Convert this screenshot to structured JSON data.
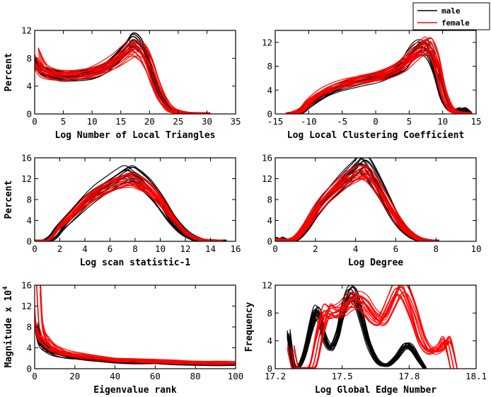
{
  "legend": {
    "entries": [
      {
        "label": "male",
        "color": "#000000"
      },
      {
        "label": "female",
        "color": "#ff0000"
      }
    ]
  },
  "chart_data": [
    {
      "type": "line",
      "xlabel": "Log Number of Local Triangles",
      "ylabel": "Percent",
      "xlim": [
        0,
        35
      ],
      "ylim": [
        0,
        12
      ],
      "xticks": [
        0,
        5,
        10,
        15,
        20,
        25,
        30,
        35
      ],
      "yticks": [
        0,
        4,
        8,
        12
      ],
      "series": [
        {
          "name": "male",
          "color": "#000000",
          "x": [
            0,
            1,
            2,
            4,
            6,
            8,
            10,
            12,
            14,
            16,
            17,
            18,
            19,
            20,
            21,
            22,
            23,
            24,
            26,
            28,
            30
          ],
          "y": [
            7.5,
            6.5,
            6.0,
            5.5,
            5.3,
            5.5,
            5.8,
            6.5,
            7.8,
            9.5,
            10.5,
            10.2,
            9.0,
            7.0,
            4.5,
            2.5,
            1.2,
            0.5,
            0.1,
            0,
            0
          ]
        },
        {
          "name": "female",
          "color": "#ff0000",
          "x": [
            0,
            1,
            2,
            4,
            6,
            8,
            10,
            12,
            14,
            16,
            17,
            18,
            19,
            20,
            21,
            22,
            23,
            24,
            26,
            28,
            30
          ],
          "y": [
            8.5,
            6.8,
            6.0,
            5.6,
            5.5,
            5.7,
            6.0,
            6.6,
            7.5,
            8.8,
            9.5,
            9.3,
            8.5,
            6.8,
            4.5,
            2.5,
            1.2,
            0.5,
            0.1,
            0,
            0
          ]
        }
      ]
    },
    {
      "type": "line",
      "xlabel": "Log Local Clustering Coefficient",
      "ylabel": "",
      "xlim": [
        -15,
        15
      ],
      "ylim": [
        0,
        14
      ],
      "xticks": [
        -15,
        -10,
        -5,
        0,
        5,
        10,
        15
      ],
      "yticks": [
        0,
        4,
        8,
        12
      ],
      "series": [
        {
          "name": "male",
          "color": "#000000",
          "x": [
            -13,
            -12,
            -11,
            -10,
            -8,
            -6,
            -4,
            -2,
            0,
            2,
            4,
            5,
            6,
            7,
            8,
            9,
            10,
            11,
            12,
            13,
            14
          ],
          "y": [
            0,
            0.1,
            0.5,
            1.5,
            3.0,
            4.2,
            5.0,
            5.6,
            6.0,
            6.8,
            8.0,
            9.5,
            10.8,
            11.2,
            10.5,
            7.5,
            3.0,
            1.0,
            0.5,
            0.8,
            0
          ]
        },
        {
          "name": "female",
          "color": "#ff0000",
          "x": [
            -13,
            -12,
            -11,
            -10,
            -8,
            -6,
            -4,
            -2,
            0,
            2,
            4,
            5,
            6,
            7,
            8,
            9,
            10,
            11,
            12,
            13,
            14
          ],
          "y": [
            0,
            0.2,
            0.8,
            2.0,
            3.6,
            4.6,
            5.3,
            5.8,
            6.2,
            7.0,
            8.2,
            9.2,
            10.2,
            11.0,
            11.5,
            9.0,
            4.0,
            1.2,
            0.3,
            0.1,
            0
          ]
        }
      ]
    },
    {
      "type": "line",
      "xlabel": "Log scan statistic-1",
      "ylabel": "Percent",
      "xlim": [
        0,
        16
      ],
      "ylim": [
        0,
        16
      ],
      "xticks": [
        0,
        2,
        4,
        6,
        8,
        10,
        12,
        14,
        16
      ],
      "yticks": [
        0,
        4,
        8,
        12,
        16
      ],
      "series": [
        {
          "name": "male",
          "color": "#000000",
          "x": [
            0,
            0.5,
            1,
            1.5,
            2,
            3,
            4,
            5,
            6,
            7,
            7.5,
            8,
            9,
            10,
            11,
            12,
            13,
            14,
            15
          ],
          "y": [
            0,
            0,
            0.1,
            1.0,
            2.5,
            5.0,
            7.5,
            9.5,
            11.0,
            12.5,
            13.0,
            12.5,
            10.5,
            7.5,
            4.0,
            1.5,
            0.3,
            0.05,
            0
          ]
        },
        {
          "name": "female",
          "color": "#ff0000",
          "x": [
            0,
            0.5,
            1,
            1.5,
            2,
            3,
            4,
            5,
            6,
            7,
            7.5,
            8,
            9,
            10,
            11,
            12,
            13,
            14,
            15
          ],
          "y": [
            0,
            0,
            0.1,
            1.2,
            2.8,
            5.2,
            7.6,
            9.4,
            10.6,
            11.5,
            11.8,
            11.6,
            10.2,
            7.8,
            4.5,
            1.8,
            0.4,
            0.05,
            0
          ]
        }
      ]
    },
    {
      "type": "line",
      "xlabel": "Log Degree",
      "ylabel": "",
      "xlim": [
        0,
        10
      ],
      "ylim": [
        0,
        16
      ],
      "xticks": [
        0,
        2,
        4,
        6,
        8,
        10
      ],
      "yticks": [
        0,
        4,
        8,
        12,
        16
      ],
      "series": [
        {
          "name": "male",
          "color": "#000000",
          "x": [
            0,
            0.2,
            0.5,
            1,
            1.5,
            2,
            2.5,
            3,
            3.5,
            4,
            4.3,
            4.6,
            5,
            5.5,
            6,
            6.5,
            7,
            7.5,
            8
          ],
          "y": [
            0,
            0.5,
            0.2,
            0.5,
            2.5,
            5.5,
            8.0,
            10.0,
            12.0,
            13.8,
            14.8,
            14.0,
            11.5,
            8.0,
            4.5,
            2.0,
            0.6,
            0.1,
            0
          ]
        },
        {
          "name": "female",
          "color": "#ff0000",
          "x": [
            0,
            0.2,
            0.5,
            1,
            1.5,
            2,
            2.5,
            3,
            3.5,
            4,
            4.3,
            4.6,
            5,
            5.5,
            6,
            6.5,
            7,
            7.5,
            8
          ],
          "y": [
            0,
            0.3,
            0.1,
            0.6,
            2.8,
            5.8,
            8.3,
            10.2,
            11.8,
            12.8,
            13.2,
            12.8,
            11.0,
            8.0,
            4.8,
            2.2,
            0.7,
            0.1,
            0
          ]
        }
      ]
    },
    {
      "type": "line",
      "xlabel": "Eigenvalue rank",
      "ylabel": "Magnitude x 10",
      "ylabel_exponent": "4",
      "xlim": [
        0,
        100
      ],
      "ylim": [
        0,
        16
      ],
      "xticks": [
        0,
        20,
        40,
        60,
        80,
        100
      ],
      "yticks": [
        0,
        4,
        8,
        12,
        16
      ],
      "series": [
        {
          "name": "male",
          "color": "#000000",
          "x": [
            1,
            2,
            3,
            4,
            5,
            7,
            10,
            15,
            20,
            30,
            40,
            50,
            60,
            70,
            80,
            90,
            100
          ],
          "y": [
            8.0,
            6.0,
            5.0,
            4.5,
            4.0,
            3.5,
            3.0,
            2.5,
            2.2,
            1.8,
            1.5,
            1.3,
            1.2,
            1.1,
            1.0,
            0.9,
            0.85
          ]
        },
        {
          "name": "female",
          "color": "#ff0000",
          "x": [
            1,
            2,
            3,
            4,
            5,
            7,
            10,
            15,
            20,
            30,
            40,
            50,
            60,
            70,
            80,
            90,
            100
          ],
          "y": [
            16.0,
            9.0,
            7.0,
            6.0,
            5.5,
            4.6,
            3.8,
            3.0,
            2.6,
            2.1,
            1.8,
            1.6,
            1.4,
            1.3,
            1.2,
            1.1,
            1.05
          ]
        }
      ]
    },
    {
      "type": "line",
      "xlabel": "Log Global Edge Number",
      "ylabel": "Frequency",
      "xlim": [
        17.2,
        18.1
      ],
      "ylim": [
        0,
        12
      ],
      "xticks": [
        17.2,
        17.5,
        17.8,
        18.1
      ],
      "xtick_labels": [
        "17.2",
        "17.5",
        "17.8",
        "18.1"
      ],
      "yticks": [
        0,
        4,
        8,
        12
      ],
      "series": [
        {
          "name": "male",
          "color": "#000000",
          "x": [
            17.26,
            17.28,
            17.3,
            17.33,
            17.36,
            17.38,
            17.4,
            17.42,
            17.45,
            17.48,
            17.5,
            17.53,
            17.56,
            17.59,
            17.62,
            17.66,
            17.7,
            17.74,
            17.78,
            17.81,
            17.84,
            17.87
          ],
          "y": [
            5.0,
            0.8,
            0,
            2.0,
            6.0,
            8.0,
            7.5,
            4.5,
            3.0,
            5.0,
            8.0,
            10.5,
            10.2,
            7.0,
            3.5,
            1.0,
            0.5,
            1.5,
            3.2,
            3.0,
            1.5,
            0
          ]
        },
        {
          "name": "female",
          "color": "#ff0000",
          "x": [
            17.27,
            17.29,
            17.31,
            17.34,
            17.37,
            17.4,
            17.43,
            17.46,
            17.5,
            17.53,
            17.56,
            17.6,
            17.64,
            17.68,
            17.72,
            17.75,
            17.78,
            17.82,
            17.86,
            17.9,
            17.94,
            17.97,
            18.0
          ],
          "y": [
            3.0,
            0,
            0,
            0,
            0.5,
            5.0,
            8.3,
            8.0,
            8.5,
            9.5,
            10.0,
            9.3,
            7.5,
            7.0,
            9.5,
            11.5,
            11.2,
            8.0,
            4.0,
            2.5,
            3.0,
            4.0,
            0
          ]
        }
      ]
    }
  ]
}
